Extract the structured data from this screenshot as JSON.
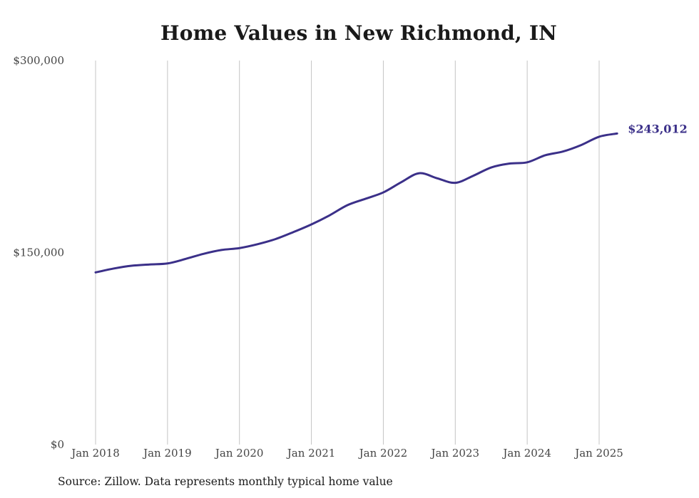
{
  "chart_data": {
    "type": "line",
    "title": "Home Values in New Richmond, IN",
    "xlabel": "",
    "ylabel": "",
    "ylim": [
      0,
      300000
    ],
    "xlim": [
      "2018-01",
      "2025-04"
    ],
    "yticks": [
      0,
      150000,
      300000
    ],
    "ytick_labels": [
      "$0",
      "$150,000",
      "$300,000"
    ],
    "xticks": [
      "2018-01",
      "2019-01",
      "2020-01",
      "2021-01",
      "2022-01",
      "2023-01",
      "2024-01",
      "2025-01"
    ],
    "xtick_labels": [
      "Jan 2018",
      "Jan 2019",
      "Jan 2020",
      "Jan 2021",
      "Jan 2022",
      "Jan 2023",
      "Jan 2024",
      "Jan 2025"
    ],
    "grid": "vertical",
    "series": [
      {
        "color": "#3b3089",
        "end_label": "$243,012",
        "points": [
          [
            "2018-01",
            134500
          ],
          [
            "2018-04",
            137500
          ],
          [
            "2018-07",
            139700
          ],
          [
            "2018-10",
            140700
          ],
          [
            "2019-01",
            141500
          ],
          [
            "2019-04",
            145000
          ],
          [
            "2019-07",
            149000
          ],
          [
            "2019-10",
            152000
          ],
          [
            "2020-01",
            153500
          ],
          [
            "2020-04",
            156500
          ],
          [
            "2020-07",
            160500
          ],
          [
            "2020-10",
            166000
          ],
          [
            "2021-01",
            172000
          ],
          [
            "2021-04",
            179000
          ],
          [
            "2021-07",
            187000
          ],
          [
            "2021-10",
            192000
          ],
          [
            "2022-01",
            197000
          ],
          [
            "2022-04",
            205000
          ],
          [
            "2022-07",
            212000
          ],
          [
            "2022-10",
            208000
          ],
          [
            "2023-01",
            204500
          ],
          [
            "2023-04",
            210000
          ],
          [
            "2023-07",
            216500
          ],
          [
            "2023-10",
            219500
          ],
          [
            "2024-01",
            220500
          ],
          [
            "2024-04",
            226000
          ],
          [
            "2024-07",
            229000
          ],
          [
            "2024-10",
            234000
          ],
          [
            "2025-01",
            240500
          ],
          [
            "2025-04",
            243012
          ]
        ]
      }
    ]
  },
  "footer": {
    "source": "Source: Zillow. Data represents monthly typical home value"
  }
}
